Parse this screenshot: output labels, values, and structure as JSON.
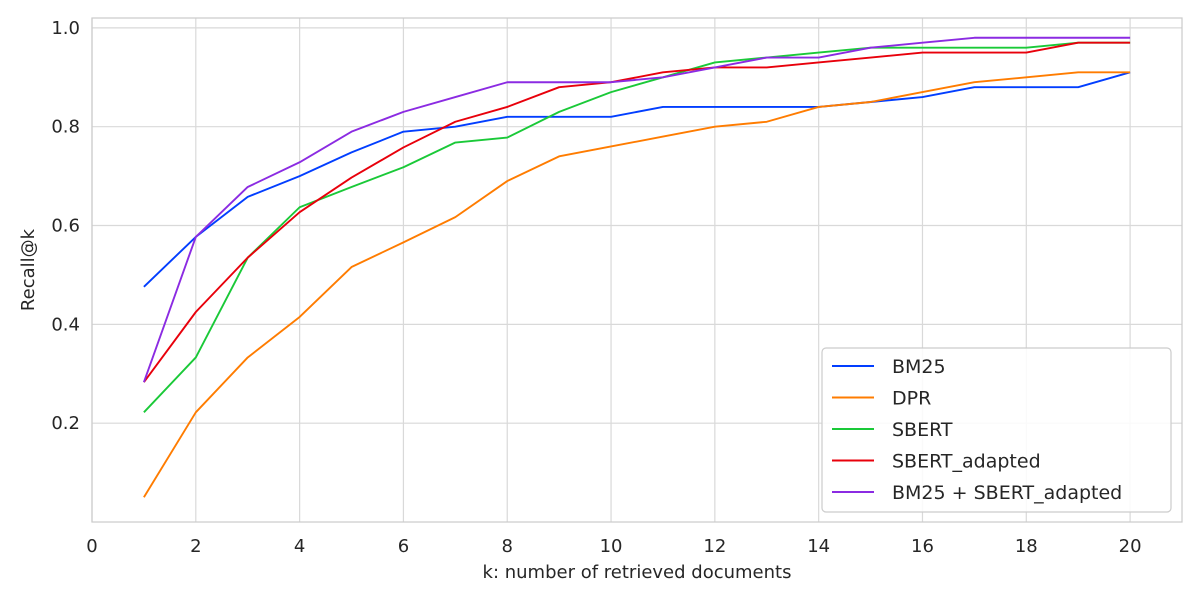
{
  "chart_data": {
    "type": "line",
    "title": "",
    "xlabel": "k: number of retrieved documents",
    "ylabel": "Recall@k",
    "xlim": [
      0,
      21
    ],
    "ylim": [
      0,
      1.02
    ],
    "xticks": [
      0,
      2,
      4,
      6,
      8,
      10,
      12,
      14,
      16,
      18,
      20
    ],
    "yticks": [
      0.2,
      0.4,
      0.6,
      0.8,
      1.0
    ],
    "grid": true,
    "legend_position": "bottom-right",
    "x": [
      1,
      2,
      3,
      4,
      5,
      6,
      7,
      8,
      9,
      10,
      11,
      12,
      13,
      14,
      15,
      16,
      17,
      18,
      19,
      20
    ],
    "series": [
      {
        "name": "BM25",
        "color": "#023eff",
        "values": [
          0.476,
          0.577,
          0.658,
          0.7,
          0.748,
          0.79,
          0.8,
          0.82,
          0.82,
          0.82,
          0.84,
          0.84,
          0.84,
          0.84,
          0.85,
          0.86,
          0.88,
          0.88,
          0.88,
          0.91
        ]
      },
      {
        "name": "DPR",
        "color": "#ff7c00",
        "values": [
          0.05,
          0.222,
          0.333,
          0.415,
          0.516,
          0.566,
          0.617,
          0.69,
          0.74,
          0.76,
          0.78,
          0.8,
          0.81,
          0.84,
          0.85,
          0.87,
          0.89,
          0.9,
          0.91,
          0.91
        ]
      },
      {
        "name": "SBERT",
        "color": "#1ac938",
        "values": [
          0.222,
          0.333,
          0.535,
          0.637,
          0.678,
          0.718,
          0.768,
          0.778,
          0.83,
          0.87,
          0.9,
          0.93,
          0.94,
          0.95,
          0.96,
          0.96,
          0.96,
          0.96,
          0.97,
          0.97
        ]
      },
      {
        "name": "SBERT_adapted",
        "color": "#e8000b",
        "values": [
          0.283,
          0.425,
          0.535,
          0.627,
          0.697,
          0.758,
          0.81,
          0.84,
          0.88,
          0.89,
          0.91,
          0.92,
          0.92,
          0.93,
          0.94,
          0.95,
          0.95,
          0.95,
          0.97,
          0.97
        ]
      },
      {
        "name": "BM25 + SBERT_adapted",
        "color": "#8b2be2",
        "values": [
          0.283,
          0.577,
          0.678,
          0.728,
          0.79,
          0.83,
          0.86,
          0.89,
          0.89,
          0.89,
          0.9,
          0.92,
          0.94,
          0.94,
          0.96,
          0.97,
          0.98,
          0.98,
          0.98,
          0.98
        ]
      }
    ]
  }
}
